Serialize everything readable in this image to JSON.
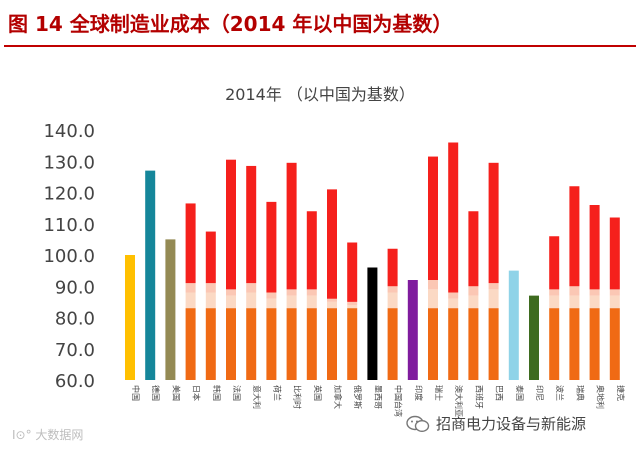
{
  "figure_title": "图 14 全球制造业成本（2014 年以中国为基数）",
  "watermark_left": "I⊙° 大数据网",
  "watermark_right": "招商电力设备与新能源",
  "colors": {
    "title": "#b30000",
    "base": "#f06a14",
    "band1": "#fbd9c4",
    "band2": "#fbc7b4",
    "top": "#f5201c"
  },
  "chart_data": {
    "type": "bar",
    "stacked": true,
    "title": "2014年 （以中国为基数）",
    "xlabel": "",
    "ylabel": "",
    "ylim": [
      60,
      140
    ],
    "yticks": [
      "60.0",
      "70.0",
      "80.0",
      "90.0",
      "100.0",
      "110.0",
      "120.0",
      "130.0",
      "140.0"
    ],
    "grid": false,
    "categories": [
      "中国",
      "德国",
      "美国",
      "日本",
      "韩国",
      "法国",
      "意大利",
      "荷兰",
      "比利时",
      "英国",
      "加拿大",
      "俄罗斯",
      "墨西哥",
      "中国台湾",
      "印度",
      "瑞士",
      "澳大利亚",
      "西班牙",
      "巴西",
      "泰国",
      "印尼",
      "波兰",
      "瑞典",
      "奥地利",
      "捷克"
    ],
    "single_bars": [
      {
        "category": "中国",
        "value": 100,
        "color": "#ffc000"
      },
      {
        "category": "德国",
        "value": 127,
        "color": "#15869a"
      },
      {
        "category": "美国",
        "value": 105,
        "color": "#948a54"
      },
      {
        "category": "墨西哥",
        "value": 96,
        "color": "#000000"
      },
      {
        "category": "印度",
        "value": 92,
        "color": "#7f1c9e"
      },
      {
        "category": "泰国",
        "value": 95,
        "color": "#8fd3e8"
      },
      {
        "category": "印尼",
        "value": 87,
        "color": "#3e6b1f"
      }
    ],
    "stacked_bars": [
      {
        "category": "日本",
        "segments": [
          83,
          88,
          91,
          116.5
        ]
      },
      {
        "category": "韩国",
        "segments": [
          83,
          88,
          91,
          107.5
        ]
      },
      {
        "category": "法国",
        "segments": [
          83,
          87,
          89,
          130.5
        ]
      },
      {
        "category": "意大利",
        "segments": [
          83,
          88,
          91,
          128.5
        ]
      },
      {
        "category": "荷兰",
        "segments": [
          83,
          86,
          88,
          117
        ]
      },
      {
        "category": "比利时",
        "segments": [
          83,
          87,
          89,
          129.5
        ]
      },
      {
        "category": "英国",
        "segments": [
          83,
          87,
          89,
          114
        ]
      },
      {
        "category": "加拿大",
        "segments": [
          83,
          85,
          86,
          121
        ]
      },
      {
        "category": "俄罗斯",
        "segments": [
          83,
          84,
          85,
          104
        ]
      },
      {
        "category": "中国台湾",
        "segments": [
          83,
          88,
          90,
          102
        ]
      },
      {
        "category": "瑞士",
        "segments": [
          83,
          89,
          92,
          131.5
        ]
      },
      {
        "category": "澳大利亚",
        "segments": [
          83,
          86,
          88,
          136
        ]
      },
      {
        "category": "西班牙",
        "segments": [
          83,
          87,
          90,
          114
        ]
      },
      {
        "category": "巴西",
        "segments": [
          83,
          89,
          91,
          129.5
        ]
      },
      {
        "category": "波兰",
        "segments": [
          83,
          87,
          89,
          106
        ]
      },
      {
        "category": "瑞典",
        "segments": [
          83,
          87,
          90,
          122
        ]
      },
      {
        "category": "奥地利",
        "segments": [
          83,
          87,
          89,
          116
        ]
      },
      {
        "category": "捷克",
        "segments": [
          83,
          87,
          89,
          112
        ]
      }
    ]
  }
}
